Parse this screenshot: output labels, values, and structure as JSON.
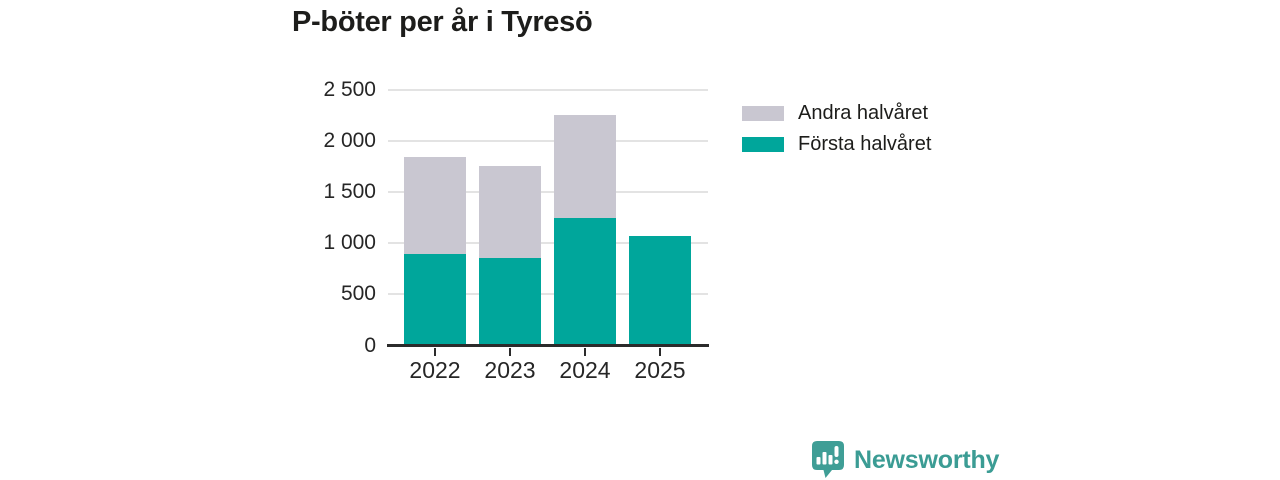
{
  "title": "P-böter per år i Tyresö",
  "legend": {
    "items": [
      {
        "label": "Andra halvåret",
        "color": "#c9c7d1"
      },
      {
        "label": "Första halvåret",
        "color": "#00a69b"
      }
    ]
  },
  "footer": {
    "brand": "Newsworthy",
    "brand_color": "#3b9c94"
  },
  "colors": {
    "teal": "#00a69b",
    "gray": "#c9c7d1",
    "axis": "#2b2b2b",
    "grid": "#e3e3e3",
    "text": "#262626",
    "title_text": "#1d1d1b"
  },
  "chart_data": {
    "type": "bar",
    "stacked": true,
    "title": "P-böter per år i Tyresö",
    "categories": [
      "2022",
      "2023",
      "2024",
      "2025"
    ],
    "series": [
      {
        "name": "Första halvåret",
        "color": "#00a69b",
        "values": [
          900,
          860,
          1250,
          1070
        ]
      },
      {
        "name": "Andra halvåret",
        "color": "#c9c7d1",
        "values": [
          940,
          900,
          1010,
          0
        ]
      }
    ],
    "totals": [
      1840,
      1760,
      2260,
      1070
    ],
    "xlabel": "",
    "ylabel": "",
    "ylim": [
      0,
      2500
    ],
    "yticks": [
      0,
      500,
      1000,
      1500,
      2000,
      2500
    ],
    "ytick_labels": [
      "0",
      "500",
      "1 000",
      "1 500",
      "2 000",
      "2 500"
    ],
    "grid": "horizontal",
    "legend_position": "right"
  }
}
